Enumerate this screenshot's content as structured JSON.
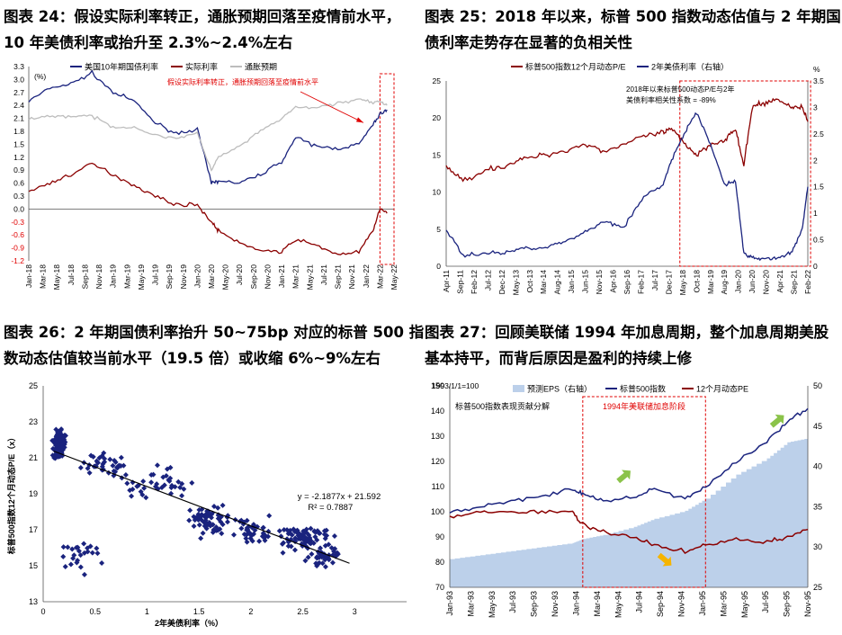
{
  "panels": [
    {
      "title_line1": "图表 24：假设实际利率转正，通胀预期回落至疫情前水平，",
      "title_line2": "10 年美债利率或抬升至 2.3%~2.4%左右",
      "chart_data": {
        "type": "line",
        "unit": "(%)",
        "annotation": "假设实际利率转正，通胀预期回落至疫情前水平",
        "ylim": [
          -1.2,
          3.3
        ],
        "yticks": [
          "3.3",
          "3.0",
          "2.7",
          "2.4",
          "2.1",
          "1.8",
          "1.5",
          "1.2",
          "0.9",
          "0.6",
          "0.3",
          "0.0",
          "-0.3",
          "-0.6",
          "-0.9",
          "-1.2"
        ],
        "xticks": [
          "Jan-18",
          "Mar-18",
          "May-18",
          "Jul-18",
          "Sep-18",
          "Nov-18",
          "Jan-19",
          "Mar-19",
          "May-19",
          "Jul-19",
          "Sep-19",
          "Nov-19",
          "Jan-20",
          "Mar-20",
          "May-20",
          "Jul-20",
          "Sep-20",
          "Nov-20",
          "Jan-21",
          "Mar-21",
          "May-21",
          "Jul-21",
          "Sep-21",
          "Nov-21",
          "Jan-22",
          "Mar-22",
          "May-22"
        ],
        "x_dates": [
          "2018-01",
          "2018-04",
          "2018-07",
          "2018-10",
          "2019-01",
          "2019-04",
          "2019-07",
          "2019-10",
          "2020-01",
          "2020-03",
          "2020-04",
          "2020-07",
          "2020-10",
          "2021-01",
          "2021-03",
          "2021-06",
          "2021-09",
          "2021-12",
          "2022-02",
          "2022-03",
          "2022-04"
        ],
        "series": [
          {
            "name": "美国10年期国债利率",
            "color": "#1a237e",
            "values": [
              2.5,
              2.8,
              2.9,
              3.15,
              2.7,
              2.5,
              2.0,
              1.75,
              1.85,
              0.6,
              0.65,
              0.6,
              0.8,
              1.1,
              1.65,
              1.45,
              1.4,
              1.5,
              1.95,
              2.2,
              2.3
            ]
          },
          {
            "name": "实际利率",
            "color": "#8b0000",
            "values": [
              0.4,
              0.6,
              0.8,
              1.05,
              0.8,
              0.55,
              0.3,
              0.1,
              0.1,
              -0.3,
              -0.5,
              -0.8,
              -0.95,
              -1.0,
              -0.7,
              -0.85,
              -1.05,
              -1.0,
              -0.5,
              0.0,
              -0.1
            ]
          },
          {
            "name": "通胀预期",
            "color": "#bdbdbd",
            "values": [
              2.1,
              2.15,
              2.15,
              2.15,
              1.9,
              1.9,
              1.7,
              1.65,
              1.75,
              0.9,
              1.2,
              1.45,
              1.8,
              2.1,
              2.35,
              2.35,
              2.45,
              2.55,
              2.45,
              2.5,
              2.4
            ]
          }
        ],
        "highlight_period": [
          "Mar-22",
          "May-22"
        ]
      }
    },
    {
      "title_line1": "图表 25：2018 年以来，标普 500 指数动态估值与 2 年期国",
      "title_line2": "债利率走势存在显著的负相关性",
      "chart_data": {
        "type": "line",
        "unit_right": "%",
        "annotation_line1": "2018年以来标普500动态P/E与2年",
        "annotation_line2": "美债利率相关性系数 = -89%",
        "ylim_left": [
          0,
          25
        ],
        "ylim_right": [
          0,
          3.5
        ],
        "yticks_left": [
          "25",
          "20",
          "15",
          "10",
          "5",
          "0"
        ],
        "yticks_right": [
          "3.5",
          "3",
          "2.5",
          "2",
          "1.5",
          "1",
          "0.5",
          "0"
        ],
        "xticks": [
          "Apr-11",
          "Sep-11",
          "Feb-12",
          "Jul-12",
          "Dec-12",
          "May-13",
          "Oct-13",
          "Mar-14",
          "Aug-14",
          "Jan-15",
          "Jun-15",
          "Nov-15",
          "Apr-16",
          "Sep-16",
          "Feb-17",
          "Jul-17",
          "Dec-17",
          "May-18",
          "Oct-18",
          "Mar-19",
          "Aug-19",
          "Jan-20",
          "Jun-20",
          "Nov-20",
          "Apr-21",
          "Sep-21",
          "Feb-22"
        ],
        "x_dates": [
          "2011-04",
          "2011-10",
          "2012-06",
          "2013-01",
          "2013-08",
          "2014-03",
          "2014-10",
          "2015-06",
          "2016-01",
          "2016-08",
          "2017-03",
          "2017-10",
          "2018-01",
          "2018-06",
          "2018-10",
          "2019-03",
          "2019-08",
          "2019-12",
          "2020-03",
          "2020-06",
          "2020-10",
          "2021-03",
          "2021-08",
          "2021-12",
          "2022-02"
        ],
        "series": [
          {
            "name": "标普500指数12个月动态P/E",
            "axis": "left",
            "color": "#8b0000",
            "values": [
              13.5,
              11.5,
              13,
              13.5,
              14.5,
              15,
              15.5,
              16.5,
              15.5,
              16.5,
              17.5,
              18,
              18.5,
              16.5,
              15,
              16.5,
              17,
              18.5,
              13.5,
              21.5,
              22,
              22.5,
              21.5,
              21.5,
              19.5
            ]
          },
          {
            "name": "2年美债利率（右轴）",
            "axis": "right",
            "color": "#1a237e",
            "values": [
              0.7,
              0.2,
              0.25,
              0.25,
              0.35,
              0.35,
              0.45,
              0.65,
              0.85,
              0.75,
              1.3,
              1.55,
              2.0,
              2.55,
              2.9,
              2.3,
              1.55,
              1.6,
              0.25,
              0.15,
              0.15,
              0.15,
              0.25,
              0.7,
              1.5
            ]
          }
        ],
        "highlight_period": [
          "May-18",
          "Feb-22"
        ]
      }
    },
    {
      "title_line1": "图表 26：2 年期国债利率抬升 50~75bp 对应的标普 500 指",
      "title_line2": "数动态估值较当前水平（19.5 倍）或收缩 6%~9%左右",
      "chart_data": {
        "type": "scatter",
        "xlabel": "2年美债利率（%）",
        "ylabel": "标普500指数12个月动态P/E（x）",
        "xlim": [
          0,
          3.5
        ],
        "ylim": [
          13,
          25
        ],
        "xticks": [
          "0",
          "0.5",
          "1",
          "1.5",
          "2",
          "2.5",
          "3"
        ],
        "yticks": [
          "25",
          "23",
          "21",
          "19",
          "17",
          "15",
          "13"
        ],
        "equation": "y = -2.1877x + 21.592",
        "r2": "R² = 0.7887",
        "trend": {
          "slope": -2.1877,
          "intercept": 21.592,
          "x_range": [
            0.1,
            2.95
          ]
        },
        "color": "#1a237e",
        "clusters": [
          {
            "cx": 0.15,
            "cy": 21.8,
            "sx": 0.06,
            "sy": 0.8,
            "n": 110
          },
          {
            "cx": 0.35,
            "cy": 15.5,
            "sx": 0.15,
            "sy": 1.0,
            "n": 25
          },
          {
            "cx": 0.6,
            "cy": 20.6,
            "sx": 0.2,
            "sy": 0.5,
            "n": 40
          },
          {
            "cx": 1.1,
            "cy": 19.5,
            "sx": 0.3,
            "sy": 1.0,
            "n": 40
          },
          {
            "cx": 1.6,
            "cy": 17.5,
            "sx": 0.2,
            "sy": 0.8,
            "n": 60
          },
          {
            "cx": 2.0,
            "cy": 17.0,
            "sx": 0.2,
            "sy": 0.6,
            "n": 40
          },
          {
            "cx": 2.5,
            "cy": 16.5,
            "sx": 0.25,
            "sy": 0.6,
            "n": 80
          },
          {
            "cx": 2.7,
            "cy": 15.5,
            "sx": 0.15,
            "sy": 0.5,
            "n": 40
          }
        ]
      }
    },
    {
      "title_line1": "图表 27：回顾美联储 1994 年加息周期，整个加息周期美股",
      "title_line2": "基本持平，而背后原因是盈利的持续上修",
      "chart_data": {
        "type": "line",
        "base_note": "1993/1/1=100",
        "subtitle": "标普500指数表现贡献分解",
        "highlight_label": "1994年美联储加息阶段",
        "ylim_left": [
          70,
          150
        ],
        "ylim_right": [
          25,
          50
        ],
        "yticks_left": [
          "150",
          "140",
          "130",
          "120",
          "110",
          "100",
          "90",
          "80",
          "70"
        ],
        "yticks_right": [
          "50",
          "45",
          "40",
          "35",
          "30",
          "25"
        ],
        "xticks": [
          "Jan-93",
          "Mar-93",
          "May-93",
          "Jul-93",
          "Sep-93",
          "Nov-93",
          "Jan-94",
          "Mar-94",
          "May-94",
          "Jul-94",
          "Sep-94",
          "Nov-94",
          "Jan-95",
          "Mar-95",
          "May-95",
          "Jul-95",
          "Sep-95",
          "Nov-95"
        ],
        "x_dates": [
          "1993-01",
          "1993-04",
          "1993-07",
          "1993-10",
          "1994-01",
          "1994-02",
          "1994-04",
          "1994-07",
          "1994-09",
          "1994-12",
          "1995-02",
          "1995-05",
          "1995-08",
          "1995-10",
          "1995-12"
        ],
        "series": [
          {
            "name": "预测EPS（右轴）",
            "axis": "right",
            "type": "area",
            "color": "#bcd0ea",
            "values": [
              28.5,
              29,
              29.5,
              30,
              30.5,
              31,
              31.5,
              32.5,
              33.5,
              34.5,
              36,
              39,
              41,
              43,
              43.5
            ]
          },
          {
            "name": "标普500指数",
            "axis": "left",
            "type": "line",
            "color": "#1a237e",
            "values": [
              100,
              102,
              104,
              106,
              109,
              107,
              104,
              106,
              109,
              105,
              110,
              120,
              128,
              136,
              141
            ]
          },
          {
            "name": "12个月动态PE",
            "axis": "left",
            "type": "line",
            "color": "#8b0000",
            "values": [
              98,
              100,
              100,
              100,
              100,
              95,
              92,
              90,
              87,
              84,
              87,
              89,
              88,
              90,
              93
            ]
          }
        ],
        "highlight_period": [
          "Feb-94",
          "Feb-95"
        ]
      }
    }
  ]
}
